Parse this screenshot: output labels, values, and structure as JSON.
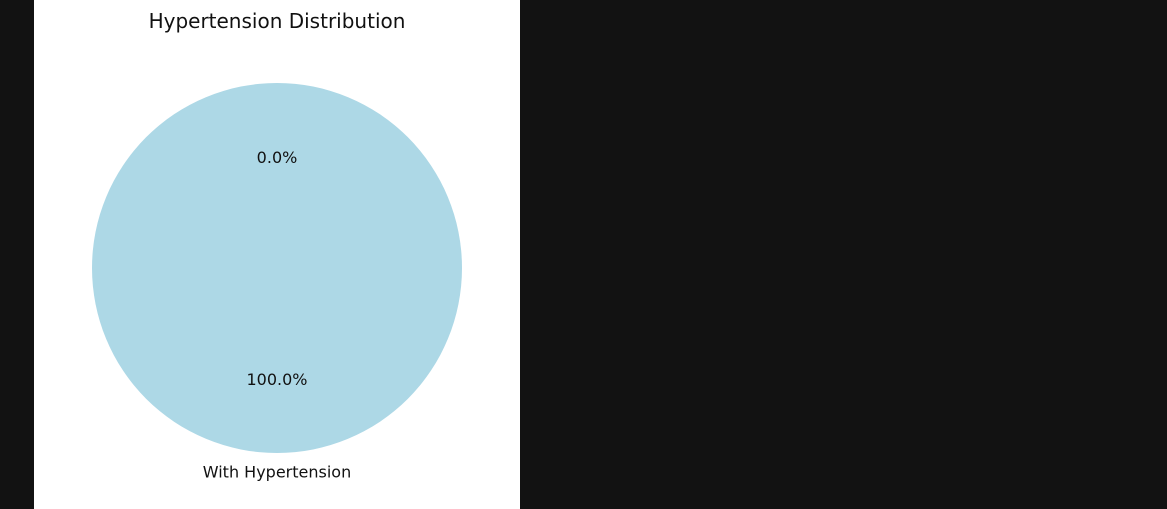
{
  "page": {
    "background_color": "#121212",
    "figure_background_color": "#ffffff"
  },
  "chart_data": {
    "type": "pie",
    "title": "Hypertension Distribution",
    "categories": [
      "",
      "With Hypertension"
    ],
    "values": [
      0.0,
      100.0
    ],
    "percent_labels": [
      "0.0%",
      "100.0%"
    ],
    "colors": [
      "#add8e6",
      "#add8e6"
    ],
    "start_angle_deg": 90,
    "direction": "counterclockwise",
    "legend": "none"
  }
}
